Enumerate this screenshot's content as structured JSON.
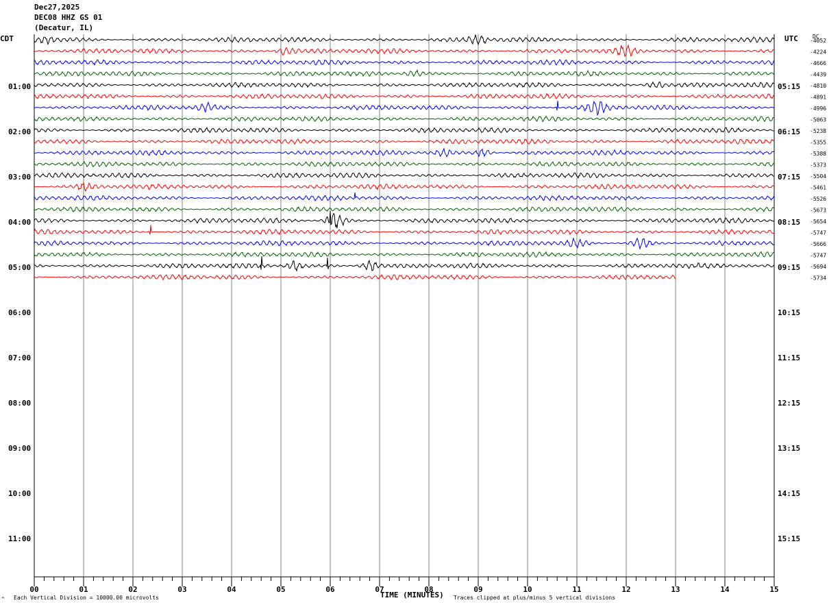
{
  "header": {
    "date": "Dec27,2025",
    "station": "DEC08 HHZ GS 01",
    "location": "(Decatur, IL)"
  },
  "labels": {
    "left_zone": "CDT",
    "right_zone": "UTC",
    "dc_label": "DC",
    "x_axis_title": "TIME (MINUTES)",
    "scale_note": "Each Vertical Division = 10000.00 microvolts",
    "clip_note": "Traces clipped at plus/minus 5 vertical divisions",
    "corner_mark": "^"
  },
  "chart_data": {
    "type": "line",
    "title": "DEC08 HHZ GS 01",
    "xlabel": "TIME (MINUTES)",
    "ylabel": "",
    "xlim": [
      0,
      15
    ],
    "x_ticks": [
      "00",
      "01",
      "02",
      "03",
      "04",
      "05",
      "06",
      "07",
      "08",
      "09",
      "10",
      "11",
      "12",
      "13",
      "14",
      "15"
    ],
    "hours_cdt": [
      "01:00",
      "02:00",
      "03:00",
      "04:00",
      "05:00",
      "06:00",
      "07:00",
      "08:00",
      "09:00",
      "10:00",
      "11:00"
    ],
    "hours_utc": [
      "05:15",
      "06:15",
      "07:15",
      "08:15",
      "09:15",
      "10:15",
      "11:15",
      "12:15",
      "13:15",
      "14:15",
      "15:15"
    ],
    "trace_colors": [
      "#000000",
      "#ff0000",
      "#0000ff",
      "#006400"
    ],
    "trace_count": 22,
    "last_trace_end_minute": 13.0,
    "dc_offsets": [
      "-4052",
      "-4224",
      "-4666",
      "-4439",
      "-4810",
      "-4891",
      "-4996",
      "-5063",
      "-5238",
      "-5355",
      "-5388",
      "-5373",
      "-5504",
      "-5461",
      "-5526",
      "-5673",
      "-5654",
      "-5747",
      "-5666",
      "-5747",
      "-5694",
      "-5734"
    ],
    "events": [
      {
        "trace": 0,
        "minute": 0.25,
        "amp": 1.2
      },
      {
        "trace": 0,
        "minute": 9.0,
        "amp": 1.1
      },
      {
        "trace": 1,
        "minute": 5.1,
        "amp": 1.2
      },
      {
        "trace": 1,
        "minute": 12.0,
        "amp": 1.3
      },
      {
        "trace": 3,
        "minute": 7.7,
        "amp": 1.0
      },
      {
        "trace": 4,
        "minute": 12.6,
        "amp": 1.0
      },
      {
        "trace": 6,
        "minute": 11.4,
        "amp": 2.0
      },
      {
        "trace": 6,
        "minute": 3.5,
        "amp": 1.0
      },
      {
        "trace": 10,
        "minute": 9.1,
        "amp": 1.4
      },
      {
        "trace": 10,
        "minute": 8.3,
        "amp": 1.0
      },
      {
        "trace": 13,
        "minute": 1.0,
        "amp": 1.0
      },
      {
        "trace": 16,
        "minute": 6.1,
        "amp": 2.6
      },
      {
        "trace": 18,
        "minute": 12.3,
        "amp": 1.6
      },
      {
        "trace": 18,
        "minute": 11.0,
        "amp": 1.1
      },
      {
        "trace": 20,
        "minute": 5.3,
        "amp": 1.6
      },
      {
        "trace": 20,
        "minute": 6.8,
        "amp": 1.5
      }
    ],
    "spikes": [
      {
        "trace": 16,
        "minute": 6.0,
        "size": 14
      },
      {
        "trace": 17,
        "minute": 2.35,
        "size": 10
      },
      {
        "trace": 20,
        "minute": 4.6,
        "size": 14
      },
      {
        "trace": 20,
        "minute": 5.95,
        "size": 12
      },
      {
        "trace": 6,
        "minute": 10.6,
        "size": 10
      },
      {
        "trace": 14,
        "minute": 6.5,
        "size": 8
      }
    ]
  }
}
